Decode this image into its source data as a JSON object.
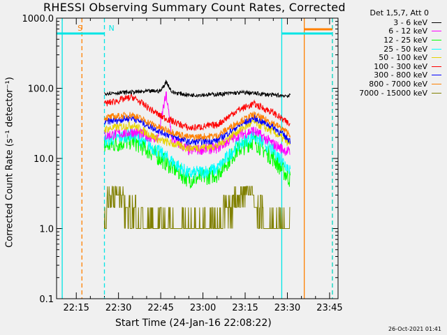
{
  "chart_data": {
    "type": "line",
    "title": "RHESSI Observing Summary Count Rates, Corrected",
    "xlabel": "Start Time (24-Jan-16 22:08:22)",
    "ylabel": "Corrected Count Rate (s⁻¹ detector⁻¹)",
    "y_scale": "log",
    "ylim": [
      0.1,
      1000
    ],
    "y_ticks": [
      "0.1",
      "1.0",
      "10.0",
      "100.0",
      "1000.0"
    ],
    "x_range": [
      "22:08",
      "23:48"
    ],
    "x_ticks": [
      "22:15",
      "22:30",
      "22:45",
      "23:00",
      "23:15",
      "23:30",
      "23:45"
    ],
    "legend_title": "Det 1,5,7, Att 0",
    "legend_position": "top-right outside plot",
    "grid": false,
    "data_start": "22:25",
    "data_end": "23:31",
    "flag_labels": [
      {
        "text": "S",
        "time": "22:14",
        "color": "#ff8000"
      },
      {
        "text": "N",
        "time": "22:25",
        "color": "#00e5e5"
      }
    ],
    "markers": [
      {
        "time": "22:10",
        "style": "solid",
        "color": "#00e5e5"
      },
      {
        "time": "22:17",
        "style": "dashed",
        "color": "#ff8000"
      },
      {
        "time": "22:25",
        "style": "dashed",
        "color": "#00e5e5"
      },
      {
        "time": "23:28",
        "style": "solid",
        "color": "#00e5e5"
      },
      {
        "time": "23:36",
        "style": "solid",
        "color": "#ff8000"
      },
      {
        "time": "23:46",
        "style": "dashed",
        "color": "#ff8000"
      },
      {
        "time": "23:46",
        "style": "dashed",
        "color": "#00e5e5"
      }
    ],
    "series": [
      {
        "name": "3 - 6 keV",
        "color": "#000000",
        "x": [
          "22:25",
          "22:35",
          "22:45",
          "22:47",
          "22:49",
          "22:55",
          "23:05",
          "23:10",
          "23:15",
          "23:25",
          "23:31"
        ],
        "y": [
          85,
          88,
          92,
          125,
          88,
          80,
          82,
          85,
          87,
          80,
          78
        ]
      },
      {
        "name": "6 - 12 keV",
        "color": "#ff00ff",
        "x": [
          "22:25",
          "22:35",
          "22:44",
          "22:46",
          "22:47",
          "22:49",
          "22:55",
          "23:05",
          "23:12",
          "23:18",
          "23:25",
          "23:31"
        ],
        "y": [
          21,
          24,
          19,
          55,
          80,
          19,
          13,
          14,
          21,
          25,
          16,
          12
        ]
      },
      {
        "name": "12 - 25 keV",
        "color": "#00ff00",
        "x": [
          "22:25",
          "22:35",
          "22:45",
          "22:55",
          "23:05",
          "23:12",
          "23:18",
          "23:25",
          "23:31"
        ],
        "y": [
          15,
          18,
          10,
          5,
          6,
          13,
          18,
          10,
          5
        ]
      },
      {
        "name": "25 - 50 keV",
        "color": "#00ffff",
        "x": [
          "22:25",
          "22:35",
          "22:45",
          "22:55",
          "23:05",
          "23:12",
          "23:18",
          "23:25",
          "23:31"
        ],
        "y": [
          18,
          22,
          12,
          6,
          7,
          15,
          21,
          13,
          7
        ]
      },
      {
        "name": "50 - 100 keV",
        "color": "#e6d200",
        "x": [
          "22:25",
          "22:35",
          "22:45",
          "22:55",
          "23:05",
          "23:12",
          "23:18",
          "23:25",
          "23:31"
        ],
        "y": [
          26,
          30,
          18,
          14,
          15,
          24,
          33,
          24,
          16
        ]
      },
      {
        "name": "100 - 300 keV",
        "color": "#ff0000",
        "x": [
          "22:25",
          "22:35",
          "22:45",
          "22:55",
          "23:05",
          "23:12",
          "23:18",
          "23:25",
          "23:31"
        ],
        "y": [
          60,
          75,
          40,
          27,
          30,
          48,
          60,
          45,
          30
        ]
      },
      {
        "name": "300 - 800 keV",
        "color": "#0000ff",
        "x": [
          "22:25",
          "22:35",
          "22:45",
          "22:55",
          "23:05",
          "23:12",
          "23:18",
          "23:25",
          "23:31"
        ],
        "y": [
          33,
          38,
          24,
          17,
          18,
          28,
          38,
          28,
          18
        ]
      },
      {
        "name": "800 - 7000 keV",
        "color": "#ff8000",
        "x": [
          "22:25",
          "22:35",
          "22:45",
          "22:55",
          "23:05",
          "23:12",
          "23:18",
          "23:25",
          "23:31"
        ],
        "y": [
          38,
          42,
          27,
          20,
          21,
          32,
          42,
          32,
          22
        ]
      },
      {
        "name": "7000 - 15000 keV",
        "color": "#808000",
        "x": [
          "22:25",
          "22:26",
          "22:28",
          "22:32",
          "22:34",
          "22:37",
          "22:39",
          "22:42",
          "23:03",
          "23:06",
          "23:08",
          "23:13",
          "23:16",
          "23:19",
          "23:22",
          "23:25",
          "23:31"
        ],
        "y": [
          1,
          2.5,
          3.5,
          2.5,
          1.8,
          1.4,
          1.1,
          1.0,
          1.0,
          1.0,
          2.0,
          3.0,
          3.6,
          2.2,
          1.4,
          1.0,
          1.0
        ]
      }
    ]
  },
  "footer": "26-Oct-2021 01:41"
}
